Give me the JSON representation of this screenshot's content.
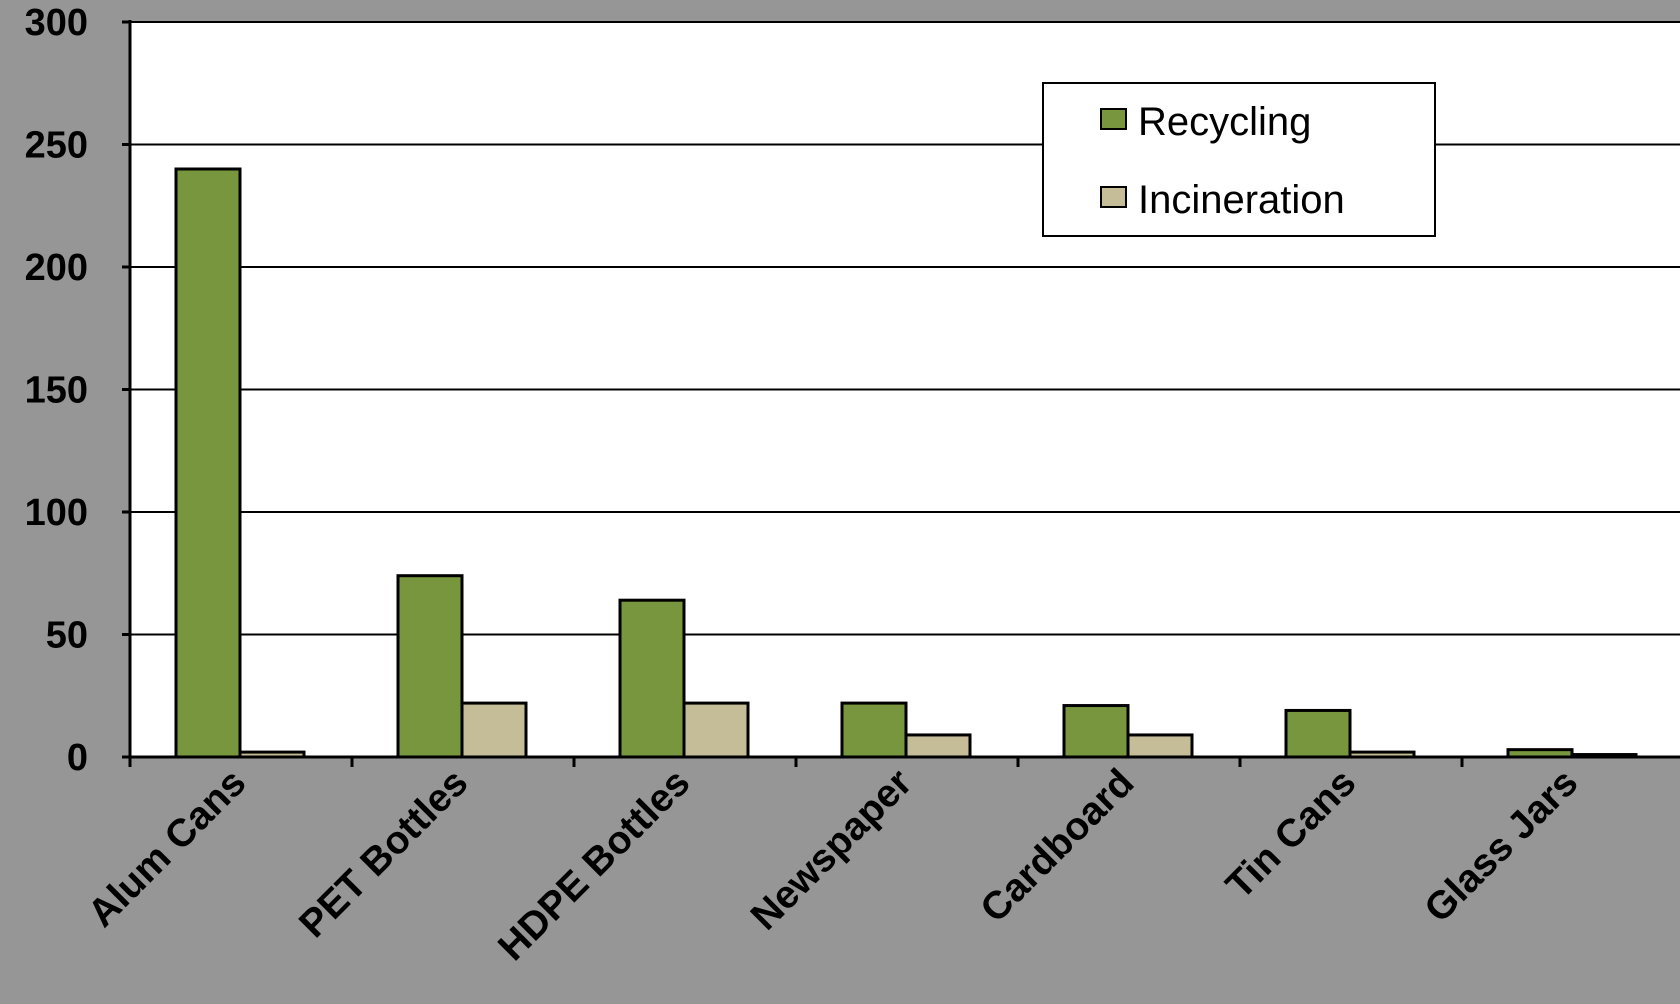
{
  "colors": {
    "background": "#969696",
    "plot_area": "#ffffff",
    "recycling": "#77963d",
    "incineration": "#c4bd97",
    "axis": "#000000"
  },
  "chart_data": {
    "type": "bar",
    "title": "",
    "xlabel": "",
    "ylabel": "",
    "ylim": [
      0,
      300
    ],
    "yticks": [
      0,
      50,
      100,
      150,
      200,
      250,
      300
    ],
    "grid": true,
    "legend_position": "top-right",
    "categories": [
      "Alum Cans",
      "PET Bottles",
      "HDPE Bottles",
      "Newspaper",
      "Cardboard",
      "Tin Cans",
      "Glass Jars"
    ],
    "series": [
      {
        "name": "Recycling",
        "color": "#77963d",
        "values": [
          240,
          74,
          64,
          22,
          21,
          19,
          3
        ]
      },
      {
        "name": "Incineration",
        "color": "#c4bd97",
        "values": [
          2,
          22,
          22,
          9,
          9,
          2,
          1
        ]
      }
    ]
  }
}
